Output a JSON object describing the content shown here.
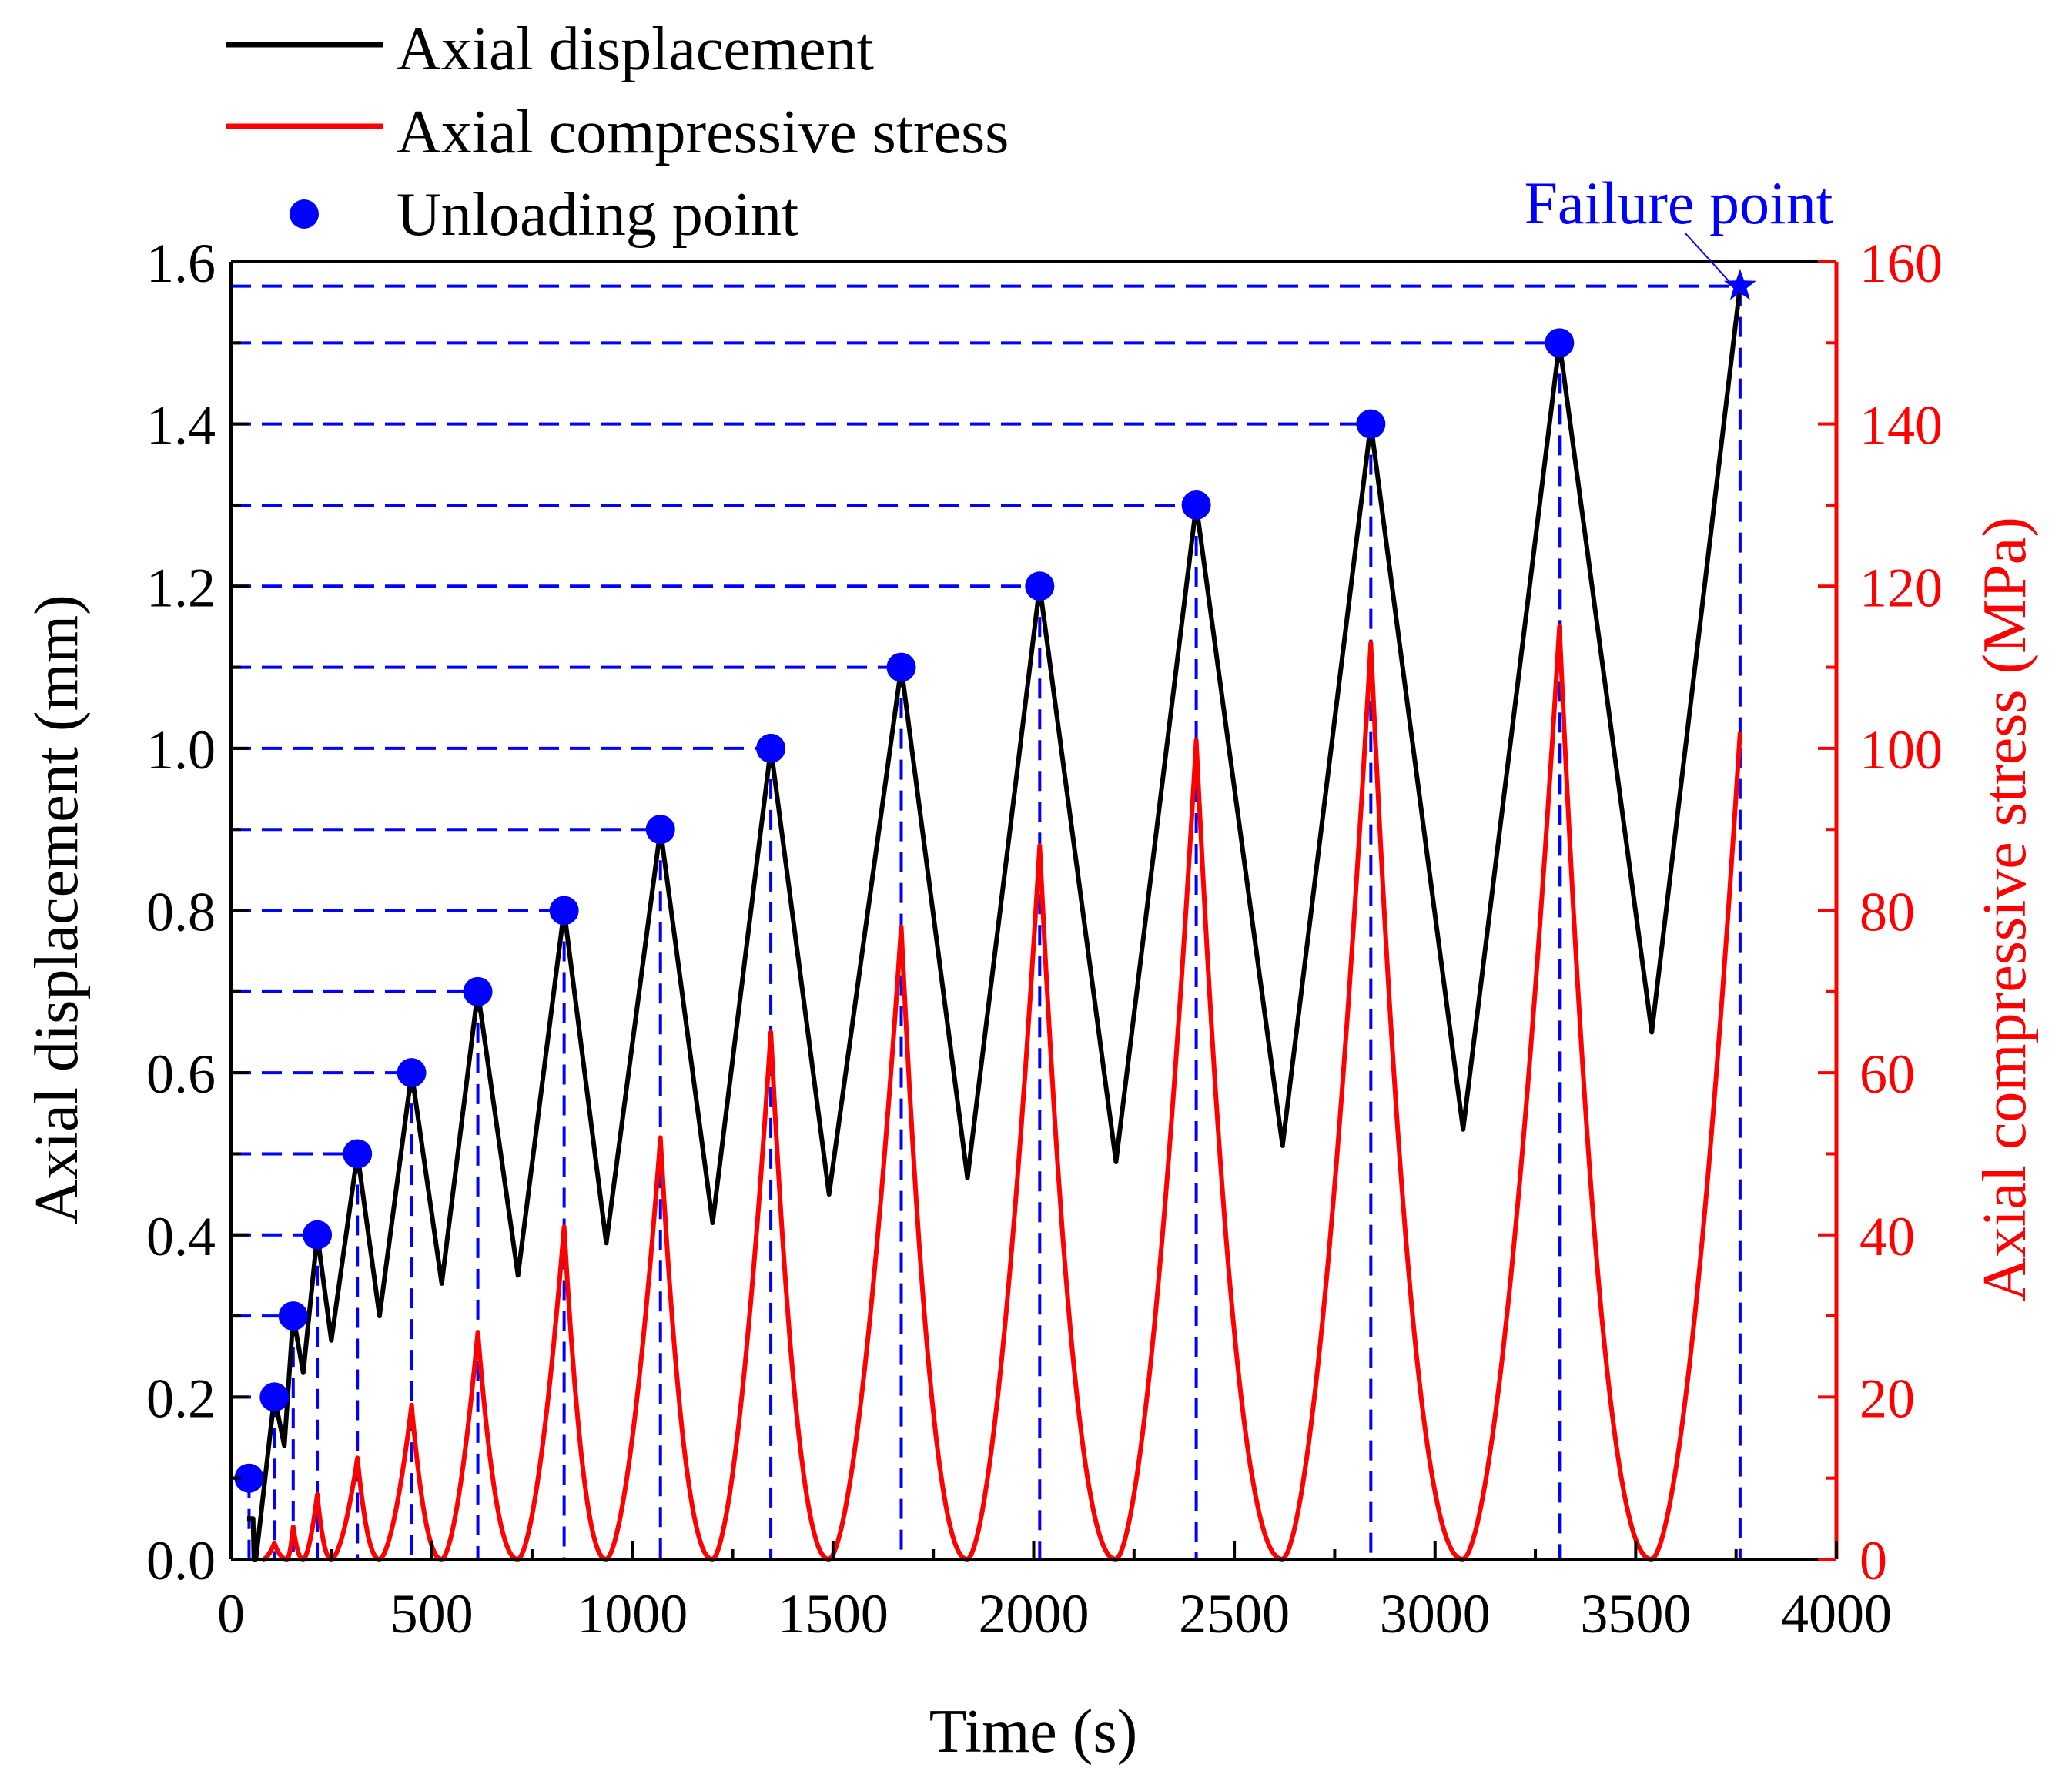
{
  "chart_data": {
    "type": "line",
    "title": "",
    "xlabel": "Time (s)",
    "ylabel": "Axial displacement (mm)",
    "y2label": "Axial compressive stress (MPa)",
    "xlim": [
      0,
      4000
    ],
    "ylim": [
      0,
      1.6
    ],
    "y2lim": [
      0,
      160
    ],
    "xticks": [
      "0",
      "500",
      "1000",
      "1500",
      "2000",
      "2500",
      "3000",
      "3500",
      "4000"
    ],
    "yticks": [
      "0.0",
      "0.2",
      "0.4",
      "0.6",
      "0.8",
      "1.0",
      "1.2",
      "1.4",
      "1.6"
    ],
    "y2ticks": [
      "0",
      "20",
      "40",
      "60",
      "80",
      "100",
      "120",
      "140",
      "160"
    ],
    "legend": {
      "position": "top-left",
      "entries": [
        "Axial displacement",
        "Axial compressive stress",
        "Unloading point"
      ]
    },
    "annotation": {
      "text": "Failure point",
      "x": 3760,
      "y": 1.57
    },
    "colors": {
      "displacement": "#000000",
      "stress": "#ff0000",
      "marker": "#0000ff"
    },
    "series": [
      {
        "name": "Axial displacement",
        "axis": "left",
        "points": [
          [
            40,
            0.05
          ],
          [
            55,
            0.05
          ],
          [
            57,
            0.0
          ],
          [
            62,
            0.0
          ],
          [
            108,
            0.2
          ],
          [
            133,
            0.14
          ],
          [
            155,
            0.3
          ],
          [
            180,
            0.23
          ],
          [
            215,
            0.4
          ],
          [
            250,
            0.27
          ],
          [
            315,
            0.5
          ],
          [
            370,
            0.3
          ],
          [
            450,
            0.6
          ],
          [
            525,
            0.34
          ],
          [
            615,
            0.7
          ],
          [
            715,
            0.35
          ],
          [
            830,
            0.8
          ],
          [
            935,
            0.39
          ],
          [
            1070,
            0.9
          ],
          [
            1200,
            0.415
          ],
          [
            1345,
            1.0
          ],
          [
            1490,
            0.45
          ],
          [
            1670,
            1.1
          ],
          [
            1835,
            0.47
          ],
          [
            2015,
            1.2
          ],
          [
            2205,
            0.49
          ],
          [
            2405,
            1.3
          ],
          [
            2620,
            0.51
          ],
          [
            2840,
            1.4
          ],
          [
            3070,
            0.53
          ],
          [
            3310,
            1.5
          ],
          [
            3540,
            0.65
          ],
          [
            3760,
            1.57
          ]
        ]
      },
      {
        "name": "Axial compressive stress",
        "axis": "right",
        "cycles": [
          {
            "start": 80,
            "peak_t": 108,
            "peak": 2,
            "end": 140
          },
          {
            "start": 140,
            "peak_t": 155,
            "peak": 4,
            "end": 180
          },
          {
            "start": 180,
            "peak_t": 215,
            "peak": 8,
            "end": 250
          },
          {
            "start": 250,
            "peak_t": 315,
            "peak": 12.5,
            "end": 370
          },
          {
            "start": 370,
            "peak_t": 450,
            "peak": 19,
            "end": 525
          },
          {
            "start": 525,
            "peak_t": 615,
            "peak": 28,
            "end": 715
          },
          {
            "start": 715,
            "peak_t": 830,
            "peak": 41,
            "end": 935
          },
          {
            "start": 935,
            "peak_t": 1070,
            "peak": 52,
            "end": 1200
          },
          {
            "start": 1200,
            "peak_t": 1345,
            "peak": 65,
            "end": 1490
          },
          {
            "start": 1490,
            "peak_t": 1670,
            "peak": 78,
            "end": 1835
          },
          {
            "start": 1835,
            "peak_t": 2015,
            "peak": 88,
            "end": 2205
          },
          {
            "start": 2205,
            "peak_t": 2405,
            "peak": 101,
            "end": 2620
          },
          {
            "start": 2620,
            "peak_t": 2840,
            "peak": 113,
            "end": 3070
          },
          {
            "start": 3070,
            "peak_t": 3310,
            "peak": 115,
            "end": 3540
          },
          {
            "start": 3540,
            "peak_t": 3760,
            "peak": 102,
            "end": 3760
          }
        ]
      }
    ],
    "unloading_points": [
      {
        "x": 45,
        "y": 0.1
      },
      {
        "x": 108,
        "y": 0.2
      },
      {
        "x": 155,
        "y": 0.3
      },
      {
        "x": 215,
        "y": 0.4
      },
      {
        "x": 315,
        "y": 0.5
      },
      {
        "x": 450,
        "y": 0.6
      },
      {
        "x": 615,
        "y": 0.7
      },
      {
        "x": 830,
        "y": 0.8
      },
      {
        "x": 1070,
        "y": 0.9
      },
      {
        "x": 1345,
        "y": 1.0
      },
      {
        "x": 1670,
        "y": 1.1
      },
      {
        "x": 2015,
        "y": 1.2
      },
      {
        "x": 2405,
        "y": 1.3
      },
      {
        "x": 2840,
        "y": 1.4
      },
      {
        "x": 3310,
        "y": 1.5
      }
    ],
    "failure_point": {
      "x": 3760,
      "y": 1.57
    }
  }
}
